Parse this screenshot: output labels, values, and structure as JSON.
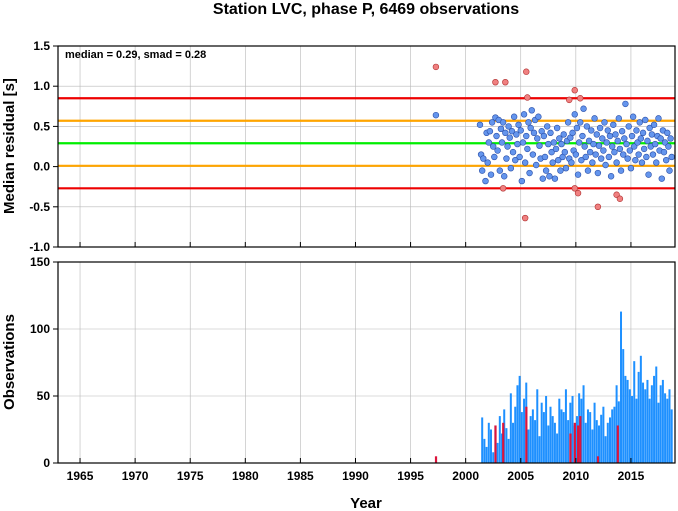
{
  "chart_data": [
    {
      "type": "scatter",
      "title": "Station LVC, phase P, 6469 observations",
      "ylabel": "Median residual [s]",
      "annotation": "median = 0.29, smad = 0.28",
      "xlim": [
        1963,
        2019
      ],
      "ylim": [
        -1.0,
        1.5
      ],
      "yticks": [
        "1.5",
        "1.0",
        "0.5",
        "0.0",
        "-0.5",
        "-1.0"
      ],
      "grid": true,
      "reference_lines": [
        {
          "y": 0.29,
          "color": "#00ee00"
        },
        {
          "y": 0.57,
          "color": "#ffa500"
        },
        {
          "y": 0.01,
          "color": "#ffa500"
        },
        {
          "y": 0.85,
          "color": "#ee0000"
        },
        {
          "y": -0.27,
          "color": "#ee0000"
        }
      ],
      "series": [
        {
          "color": "#6495ed",
          "points": [
            [
              1997.3,
              0.64
            ],
            [
              2001.3,
              0.52
            ],
            [
              2001.4,
              0.15
            ],
            [
              2001.5,
              -0.05
            ],
            [
              2001.6,
              0.1
            ],
            [
              2001.8,
              -0.18
            ],
            [
              2001.9,
              0.42
            ],
            [
              2002.0,
              0.05
            ],
            [
              2002.1,
              0.3
            ],
            [
              2002.2,
              0.44
            ],
            [
              2002.3,
              -0.1
            ],
            [
              2002.4,
              0.55
            ],
            [
              2002.5,
              0.25
            ],
            [
              2002.6,
              0.12
            ],
            [
              2002.7,
              0.61
            ],
            [
              2002.8,
              0.38
            ],
            [
              2002.9,
              0.2
            ],
            [
              2003.0,
              0.58
            ],
            [
              2003.1,
              -0.05
            ],
            [
              2003.2,
              0.47
            ],
            [
              2003.3,
              0.3
            ],
            [
              2003.4,
              0.55
            ],
            [
              2003.5,
              -0.12
            ],
            [
              2003.6,
              0.42
            ],
            [
              2003.7,
              0.1
            ],
            [
              2003.8,
              0.25
            ],
            [
              2003.9,
              0.5
            ],
            [
              2004.0,
              0.36
            ],
            [
              2004.1,
              -0.02
            ],
            [
              2004.2,
              0.44
            ],
            [
              2004.3,
              0.18
            ],
            [
              2004.4,
              0.62
            ],
            [
              2004.5,
              0.08
            ],
            [
              2004.6,
              0.4
            ],
            [
              2004.7,
              0.28
            ],
            [
              2004.8,
              0.52
            ],
            [
              2004.9,
              0.12
            ],
            [
              2005.0,
              0.45
            ],
            [
              2005.1,
              -0.18
            ],
            [
              2005.2,
              0.3
            ],
            [
              2005.3,
              0.65
            ],
            [
              2005.4,
              0.05
            ],
            [
              2005.5,
              0.38
            ],
            [
              2005.6,
              0.22
            ],
            [
              2005.7,
              0.55
            ],
            [
              2005.8,
              -0.08
            ],
            [
              2005.9,
              0.48
            ],
            [
              2006.0,
              0.7
            ],
            [
              2006.1,
              0.15
            ],
            [
              2006.2,
              0.42
            ],
            [
              2006.3,
              0.58
            ],
            [
              2006.4,
              0.02
            ],
            [
              2006.5,
              0.35
            ],
            [
              2006.6,
              0.62
            ],
            [
              2006.7,
              0.26
            ],
            [
              2006.8,
              0.1
            ],
            [
              2006.9,
              0.44
            ],
            [
              2007.0,
              -0.15
            ],
            [
              2007.1,
              0.38
            ],
            [
              2007.2,
              0.12
            ],
            [
              2007.3,
              -0.05
            ],
            [
              2007.4,
              0.5
            ],
            [
              2007.5,
              0.28
            ],
            [
              2007.6,
              -0.12
            ],
            [
              2007.7,
              0.42
            ],
            [
              2007.8,
              0.18
            ],
            [
              2007.9,
              0.05
            ],
            [
              2008.0,
              0.3
            ],
            [
              2008.1,
              -0.15
            ],
            [
              2008.2,
              0.22
            ],
            [
              2008.3,
              0.48
            ],
            [
              2008.4,
              0.08
            ],
            [
              2008.5,
              0.35
            ],
            [
              2008.6,
              -0.05
            ],
            [
              2008.7,
              0.28
            ],
            [
              2008.8,
              0.12
            ],
            [
              2008.9,
              0.4
            ],
            [
              2009.0,
              0.18
            ],
            [
              2009.1,
              -0.02
            ],
            [
              2009.2,
              0.32
            ],
            [
              2009.3,
              0.55
            ],
            [
              2009.4,
              0.1
            ],
            [
              2009.5,
              0.36
            ],
            [
              2009.6,
              0.05
            ],
            [
              2009.7,
              0.42
            ],
            [
              2009.8,
              0.2
            ],
            [
              2009.9,
              0.65
            ],
            [
              2010.0,
              0.15
            ],
            [
              2010.1,
              0.48
            ],
            [
              2010.2,
              -0.1
            ],
            [
              2010.3,
              0.3
            ],
            [
              2010.4,
              0.55
            ],
            [
              2010.5,
              0.08
            ],
            [
              2010.6,
              0.38
            ],
            [
              2010.7,
              0.72
            ],
            [
              2010.8,
              0.25
            ],
            [
              2010.9,
              0.12
            ],
            [
              2011.0,
              0.5
            ],
            [
              2011.1,
              -0.05
            ],
            [
              2011.2,
              0.32
            ],
            [
              2011.3,
              0.18
            ],
            [
              2011.4,
              0.45
            ],
            [
              2011.5,
              0.05
            ],
            [
              2011.6,
              0.28
            ],
            [
              2011.7,
              0.6
            ],
            [
              2011.8,
              0.15
            ],
            [
              2011.9,
              0.4
            ],
            [
              2012.0,
              -0.08
            ],
            [
              2012.1,
              0.26
            ],
            [
              2012.2,
              0.48
            ],
            [
              2012.3,
              0.1
            ],
            [
              2012.4,
              0.35
            ],
            [
              2012.5,
              0.2
            ],
            [
              2012.6,
              0.55
            ],
            [
              2012.7,
              0.02
            ],
            [
              2012.8,
              0.3
            ],
            [
              2012.9,
              0.45
            ],
            [
              2013.0,
              0.12
            ],
            [
              2013.1,
              0.38
            ],
            [
              2013.2,
              -0.12
            ],
            [
              2013.3,
              0.25
            ],
            [
              2013.4,
              0.52
            ],
            [
              2013.5,
              0.18
            ],
            [
              2013.6,
              0.4
            ],
            [
              2013.7,
              0.05
            ],
            [
              2013.8,
              0.32
            ],
            [
              2013.9,
              0.6
            ],
            [
              2014.0,
              0.22
            ],
            [
              2014.1,
              -0.05
            ],
            [
              2014.2,
              0.44
            ],
            [
              2014.3,
              0.15
            ],
            [
              2014.4,
              0.35
            ],
            [
              2014.5,
              0.78
            ],
            [
              2014.6,
              0.28
            ],
            [
              2014.7,
              0.1
            ],
            [
              2014.8,
              0.5
            ],
            [
              2014.9,
              0.2
            ],
            [
              2015.0,
              -0.02
            ],
            [
              2015.1,
              0.38
            ],
            [
              2015.2,
              0.62
            ],
            [
              2015.3,
              0.25
            ],
            [
              2015.4,
              0.08
            ],
            [
              2015.5,
              0.45
            ],
            [
              2015.6,
              0.3
            ],
            [
              2015.7,
              0.15
            ],
            [
              2015.8,
              0.55
            ],
            [
              2015.9,
              0.35
            ],
            [
              2016.0,
              0.05
            ],
            [
              2016.1,
              0.42
            ],
            [
              2016.2,
              0.22
            ],
            [
              2016.3,
              0.58
            ],
            [
              2016.4,
              0.12
            ],
            [
              2016.5,
              0.32
            ],
            [
              2016.6,
              -0.1
            ],
            [
              2016.7,
              0.48
            ],
            [
              2016.8,
              0.25
            ],
            [
              2016.9,
              0.4
            ],
            [
              2017.0,
              0.15
            ],
            [
              2017.1,
              0.52
            ],
            [
              2017.2,
              0.28
            ],
            [
              2017.3,
              0.05
            ],
            [
              2017.4,
              0.38
            ],
            [
              2017.5,
              0.6
            ],
            [
              2017.6,
              0.2
            ],
            [
              2017.7,
              0.35
            ],
            [
              2017.8,
              -0.15
            ],
            [
              2017.9,
              0.45
            ],
            [
              2018.0,
              0.18
            ],
            [
              2018.1,
              0.3
            ],
            [
              2018.2,
              0.08
            ],
            [
              2018.3,
              0.42
            ],
            [
              2018.4,
              0.25
            ],
            [
              2018.5,
              -0.05
            ],
            [
              2018.6,
              0.35
            ],
            [
              2018.7,
              0.12
            ]
          ]
        },
        {
          "color": "#f08080",
          "points": [
            [
              1997.3,
              1.24
            ],
            [
              2002.7,
              1.05
            ],
            [
              2003.6,
              1.05
            ],
            [
              2003.4,
              -0.27
            ],
            [
              2005.5,
              1.18
            ],
            [
              2005.6,
              0.86
            ],
            [
              2005.4,
              -0.64
            ],
            [
              2009.4,
              0.83
            ],
            [
              2009.9,
              0.95
            ],
            [
              2010.4,
              0.85
            ],
            [
              2009.9,
              -0.27
            ],
            [
              2010.2,
              -0.33
            ],
            [
              2012.0,
              -0.5
            ],
            [
              2013.7,
              -0.35
            ],
            [
              2014.0,
              -0.4
            ]
          ]
        }
      ]
    },
    {
      "type": "bar",
      "xlabel": "Year",
      "ylabel": "Observations",
      "xlim": [
        1963,
        2019
      ],
      "ylim": [
        0,
        150
      ],
      "xticks": [
        "1965",
        "1970",
        "1975",
        "1980",
        "1985",
        "1990",
        "1995",
        "2000",
        "2005",
        "2010",
        "2015"
      ],
      "yticks": [
        "150",
        "100",
        "50",
        "0"
      ],
      "grid": true,
      "series": [
        {
          "color": "#1e90ff",
          "x": [
            2001.5,
            2001.7,
            2001.9,
            2002.1,
            2002.3,
            2002.5,
            2002.7,
            2002.9,
            2003.1,
            2003.3,
            2003.5,
            2003.7,
            2003.9,
            2004.1,
            2004.3,
            2004.5,
            2004.7,
            2004.9,
            2005.1,
            2005.3,
            2005.5,
            2005.7,
            2005.9,
            2006.1,
            2006.3,
            2006.5,
            2006.7,
            2006.9,
            2007.1,
            2007.3,
            2007.5,
            2007.7,
            2007.9,
            2008.1,
            2008.3,
            2008.5,
            2008.7,
            2008.9,
            2009.1,
            2009.3,
            2009.5,
            2009.7,
            2009.9,
            2010.1,
            2010.3,
            2010.5,
            2010.7,
            2010.9,
            2011.1,
            2011.3,
            2011.5,
            2011.7,
            2011.9,
            2012.1,
            2012.3,
            2012.5,
            2012.7,
            2012.9,
            2013.1,
            2013.3,
            2013.5,
            2013.7,
            2013.9,
            2014.1,
            2014.3,
            2014.5,
            2014.7,
            2014.9,
            2015.1,
            2015.3,
            2015.5,
            2015.7,
            2015.9,
            2016.1,
            2016.3,
            2016.5,
            2016.7,
            2016.9,
            2017.1,
            2017.3,
            2017.5,
            2017.7,
            2017.9,
            2018.1,
            2018.3,
            2018.5,
            2018.7
          ],
          "values": [
            34,
            18,
            12,
            30,
            25,
            8,
            28,
            15,
            35,
            22,
            40,
            26,
            18,
            52,
            30,
            42,
            58,
            65,
            38,
            48,
            60,
            25,
            35,
            40,
            32,
            55,
            20,
            45,
            38,
            50,
            28,
            42,
            35,
            30,
            22,
            48,
            40,
            38,
            55,
            32,
            45,
            50,
            28,
            35,
            52,
            48,
            58,
            30,
            40,
            38,
            25,
            45,
            32,
            28,
            36,
            42,
            20,
            30,
            34,
            40,
            42,
            58,
            46,
            113,
            85,
            65,
            62,
            55,
            50,
            76,
            48,
            68,
            80,
            60,
            55,
            62,
            48,
            58,
            65,
            72,
            45,
            58,
            62,
            52,
            48,
            55,
            40
          ]
        },
        {
          "color": "#dc143c",
          "x": [
            1997.3,
            2002.7,
            2003.4,
            2005.5,
            2009.5,
            2009.9,
            2010.2,
            2010.4,
            2012.0,
            2013.8
          ],
          "values": [
            5,
            28,
            30,
            42,
            22,
            30,
            28,
            35,
            5,
            28
          ]
        }
      ]
    }
  ]
}
